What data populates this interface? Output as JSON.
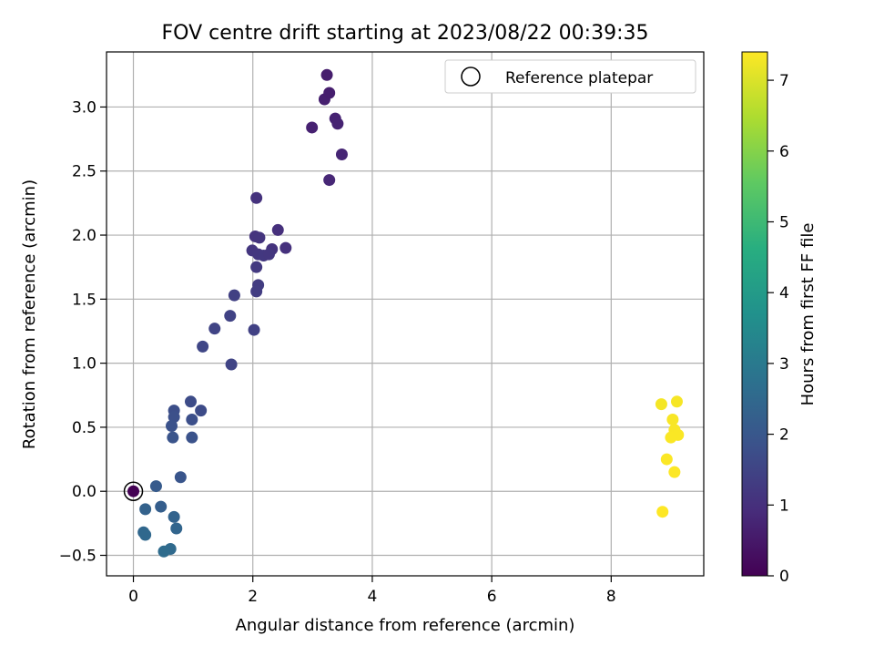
{
  "chart_data": {
    "type": "scatter",
    "title": "FOV centre drift starting at 2023/08/22 00:39:35",
    "xlabel": "Angular distance from reference (arcmin)",
    "ylabel": "Rotation from reference (arcmin)",
    "xlim": [
      -0.45,
      9.55
    ],
    "ylim": [
      -0.66,
      3.43
    ],
    "xticks": [
      0,
      2,
      4,
      6,
      8
    ],
    "xtick_labels": [
      "0",
      "2",
      "4",
      "6",
      "8"
    ],
    "yticks": [
      -0.5,
      0.0,
      0.5,
      1.0,
      1.5,
      2.0,
      2.5,
      3.0
    ],
    "ytick_labels": [
      "−0.5",
      "0.0",
      "0.5",
      "1.0",
      "1.5",
      "2.0",
      "2.5",
      "3.0"
    ],
    "grid": true,
    "legend": {
      "position": "top-right",
      "entries": [
        "Reference platepar"
      ]
    },
    "colorbar": {
      "label": "Hours from first FF file",
      "range": [
        0,
        7.4
      ],
      "ticks": [
        0,
        1,
        2,
        3,
        4,
        5,
        6,
        7
      ],
      "tick_labels": [
        "0",
        "1",
        "2",
        "3",
        "4",
        "5",
        "6",
        "7"
      ],
      "colormap": "viridis"
    },
    "reference_point": {
      "x": 0,
      "y": 0
    },
    "points": [
      {
        "x": 0.0,
        "y": 0.0,
        "t": 0.0
      },
      {
        "x": 3.24,
        "y": 3.25,
        "t": 0.6
      },
      {
        "x": 3.2,
        "y": 3.06,
        "t": 0.65
      },
      {
        "x": 3.28,
        "y": 3.11,
        "t": 0.62
      },
      {
        "x": 3.38,
        "y": 2.91,
        "t": 0.7
      },
      {
        "x": 3.42,
        "y": 2.87,
        "t": 0.72
      },
      {
        "x": 2.99,
        "y": 2.84,
        "t": 0.68
      },
      {
        "x": 3.49,
        "y": 2.63,
        "t": 0.75
      },
      {
        "x": 3.28,
        "y": 2.43,
        "t": 0.8
      },
      {
        "x": 2.06,
        "y": 2.29,
        "t": 1.05
      },
      {
        "x": 2.42,
        "y": 2.04,
        "t": 1.0
      },
      {
        "x": 2.04,
        "y": 1.99,
        "t": 1.1
      },
      {
        "x": 2.11,
        "y": 1.98,
        "t": 1.12
      },
      {
        "x": 1.99,
        "y": 1.88,
        "t": 1.15
      },
      {
        "x": 2.32,
        "y": 1.89,
        "t": 1.08
      },
      {
        "x": 2.55,
        "y": 1.9,
        "t": 1.02
      },
      {
        "x": 2.09,
        "y": 1.85,
        "t": 1.18
      },
      {
        "x": 2.18,
        "y": 1.84,
        "t": 1.2
      },
      {
        "x": 2.27,
        "y": 1.85,
        "t": 1.17
      },
      {
        "x": 2.06,
        "y": 1.75,
        "t": 1.22
      },
      {
        "x": 2.09,
        "y": 1.61,
        "t": 1.3
      },
      {
        "x": 2.06,
        "y": 1.56,
        "t": 1.32
      },
      {
        "x": 1.69,
        "y": 1.53,
        "t": 1.4
      },
      {
        "x": 1.62,
        "y": 1.37,
        "t": 1.45
      },
      {
        "x": 1.36,
        "y": 1.27,
        "t": 1.5
      },
      {
        "x": 2.02,
        "y": 1.26,
        "t": 1.42
      },
      {
        "x": 1.16,
        "y": 1.13,
        "t": 1.55
      },
      {
        "x": 1.64,
        "y": 0.99,
        "t": 1.5
      },
      {
        "x": 0.96,
        "y": 0.7,
        "t": 1.7
      },
      {
        "x": 1.13,
        "y": 0.63,
        "t": 1.68
      },
      {
        "x": 0.68,
        "y": 0.63,
        "t": 1.75
      },
      {
        "x": 0.68,
        "y": 0.58,
        "t": 1.8
      },
      {
        "x": 0.98,
        "y": 0.56,
        "t": 1.78
      },
      {
        "x": 0.64,
        "y": 0.51,
        "t": 1.85
      },
      {
        "x": 0.66,
        "y": 0.42,
        "t": 1.9
      },
      {
        "x": 0.98,
        "y": 0.42,
        "t": 1.88
      },
      {
        "x": 0.79,
        "y": 0.11,
        "t": 1.95
      },
      {
        "x": 0.38,
        "y": 0.04,
        "t": 2.1
      },
      {
        "x": 0.46,
        "y": -0.12,
        "t": 2.2
      },
      {
        "x": 0.2,
        "y": -0.14,
        "t": 2.3
      },
      {
        "x": 0.68,
        "y": -0.2,
        "t": 2.35
      },
      {
        "x": 0.72,
        "y": -0.29,
        "t": 2.4
      },
      {
        "x": 0.17,
        "y": -0.32,
        "t": 2.45
      },
      {
        "x": 0.2,
        "y": -0.34,
        "t": 2.5
      },
      {
        "x": 0.62,
        "y": -0.45,
        "t": 2.55
      },
      {
        "x": 0.51,
        "y": -0.47,
        "t": 2.6
      },
      {
        "x": 8.84,
        "y": 0.68,
        "t": 7.3
      },
      {
        "x": 9.1,
        "y": 0.7,
        "t": 7.32
      },
      {
        "x": 9.03,
        "y": 0.56,
        "t": 7.34
      },
      {
        "x": 9.06,
        "y": 0.48,
        "t": 7.35
      },
      {
        "x": 9.12,
        "y": 0.44,
        "t": 7.36
      },
      {
        "x": 9.0,
        "y": 0.42,
        "t": 7.37
      },
      {
        "x": 8.93,
        "y": 0.25,
        "t": 7.38
      },
      {
        "x": 9.06,
        "y": 0.15,
        "t": 7.39
      },
      {
        "x": 8.86,
        "y": -0.16,
        "t": 7.4
      }
    ]
  }
}
